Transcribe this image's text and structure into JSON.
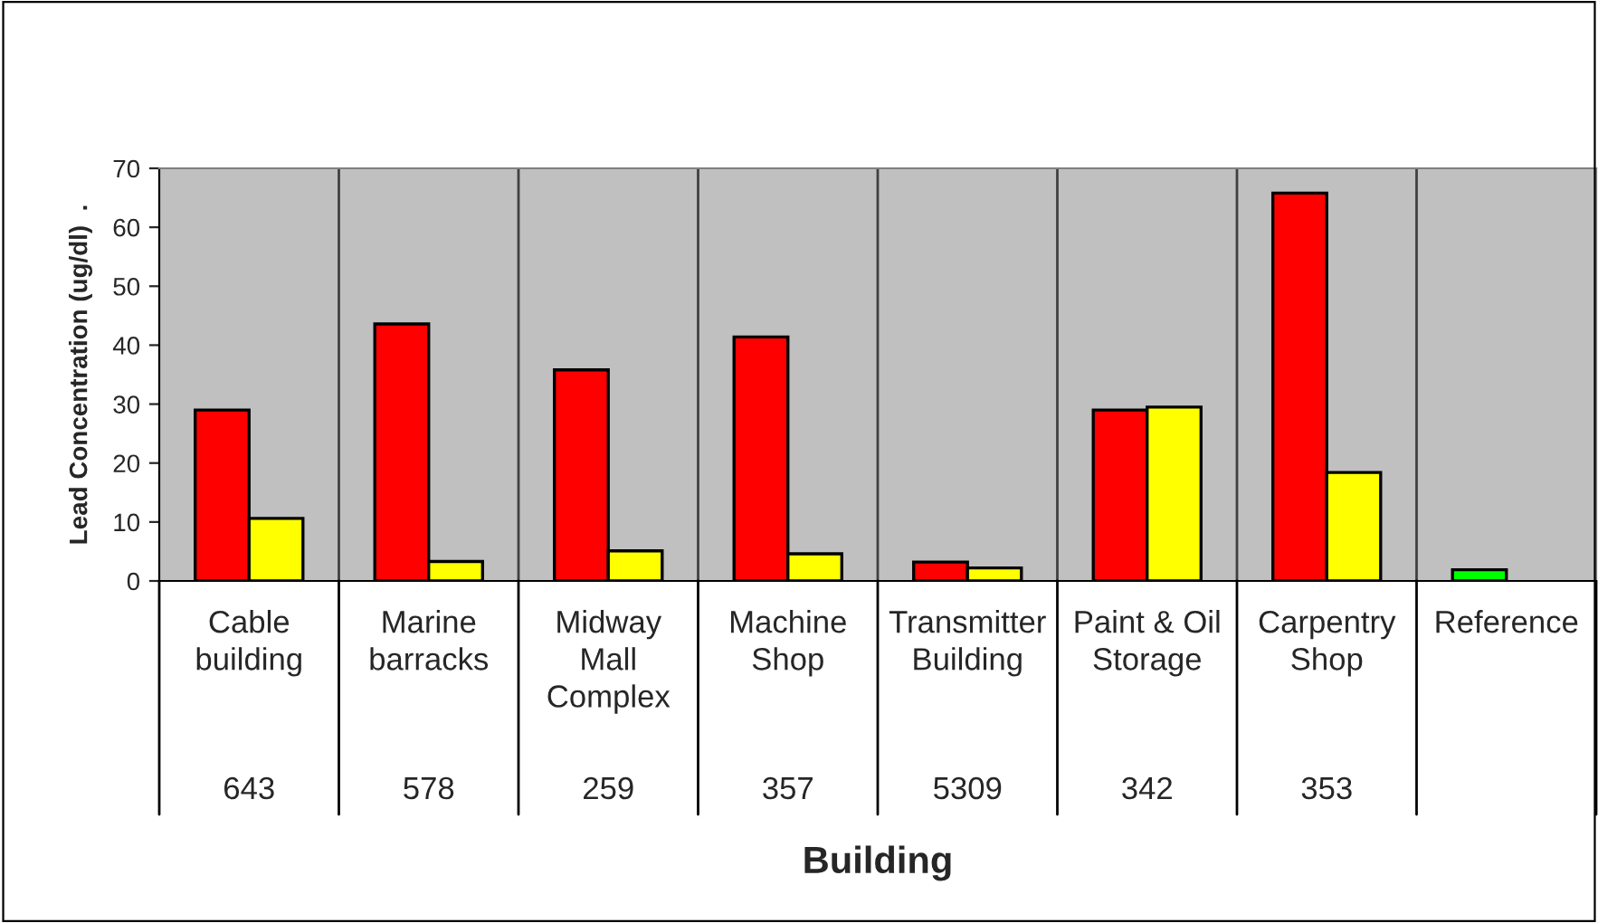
{
  "chart_data": {
    "type": "bar",
    "xlabel": "Building",
    "ylabel": "Lead Concentration (ug/dl)  .",
    "categories": [
      "Cable\nbuilding",
      "Marine\nbarracks",
      "Midway\nMall\nComplex",
      "Machine\nShop",
      "Transmitter\nBuilding",
      "Paint & Oil\nStorage",
      "Carpentry\nShop",
      "Reference"
    ],
    "series": [
      {
        "colors": [
          "#ff0000",
          "#ff0000",
          "#ff0000",
          "#ff0000",
          "#ff0000",
          "#ff0000",
          "#ff0000",
          "#00ff00"
        ],
        "values": [
          29.0,
          43.6,
          35.8,
          41.4,
          3.2,
          29.0,
          65.8,
          1.9
        ]
      },
      {
        "color": "#ffff00",
        "values": [
          10.6,
          3.3,
          5.1,
          4.6,
          2.2,
          29.5,
          18.4,
          null
        ]
      }
    ],
    "annotations": [
      "643",
      "578",
      "259",
      "357",
      "5309",
      "342",
      "353"
    ],
    "ylim": [
      0,
      70
    ],
    "yticks": [
      0,
      10,
      20,
      30,
      40,
      50,
      60,
      70
    ],
    "grid": "x",
    "legend": false
  }
}
